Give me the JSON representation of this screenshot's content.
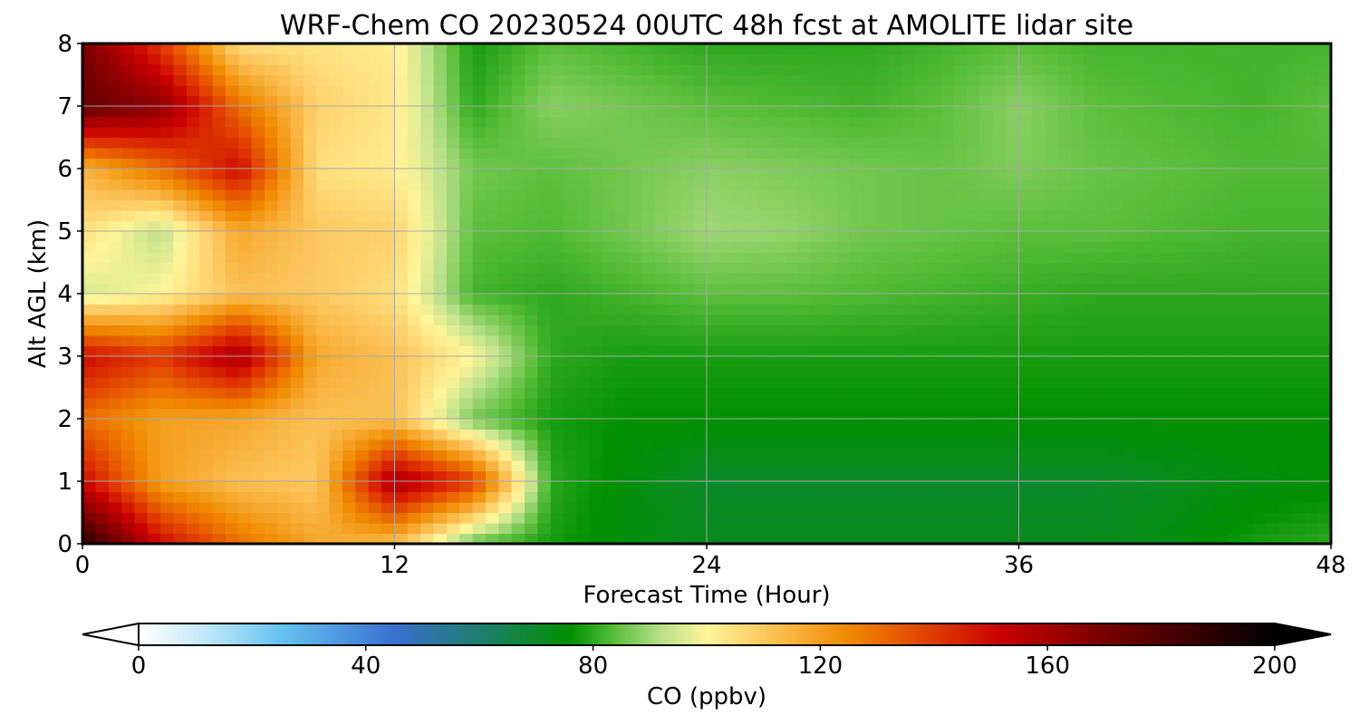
{
  "chart_data": {
    "type": "heatmap",
    "title": "WRF-Chem CO  20230524 00UTC 48h fcst at AMOLITE lidar site",
    "xlabel": "Forecast Time (Hour)",
    "ylabel": "Alt AGL (km)",
    "xlim": [
      0,
      48
    ],
    "ylim": [
      0,
      8
    ],
    "xticks": [
      0,
      12,
      24,
      36,
      48
    ],
    "yticks": [
      0,
      1,
      2,
      3,
      4,
      5,
      6,
      7,
      8
    ],
    "grid": true,
    "x": [
      0,
      3,
      6,
      9,
      12,
      15,
      18,
      21,
      24,
      27,
      30,
      33,
      36,
      39,
      42,
      45,
      48
    ],
    "y": [
      0,
      1,
      2,
      3,
      4,
      5,
      6,
      7,
      8
    ],
    "z": [
      [
        190,
        150,
        130,
        118,
        112,
        84,
        78,
        74,
        72,
        72,
        72,
        72,
        72,
        72,
        74,
        78,
        80
      ],
      [
        150,
        120,
        112,
        110,
        160,
        140,
        80,
        74,
        70,
        70,
        70,
        70,
        70,
        70,
        72,
        74,
        75
      ],
      [
        130,
        120,
        118,
        112,
        112,
        86,
        78,
        76,
        76,
        76,
        76,
        76,
        76,
        76,
        76,
        76,
        76
      ],
      [
        150,
        140,
        160,
        118,
        112,
        100,
        80,
        78,
        78,
        78,
        78,
        78,
        78,
        78,
        78,
        78,
        78
      ],
      [
        95,
        100,
        112,
        110,
        105,
        82,
        80,
        82,
        84,
        84,
        83,
        82,
        81,
        80,
        80,
        80,
        80
      ],
      [
        105,
        92,
        118,
        110,
        108,
        84,
        83,
        86,
        90,
        89,
        86,
        85,
        84,
        84,
        83,
        82,
        82
      ],
      [
        115,
        130,
        150,
        105,
        102,
        86,
        84,
        86,
        88,
        87,
        86,
        85,
        87,
        85,
        84,
        83,
        83
      ],
      [
        175,
        165,
        130,
        108,
        103,
        80,
        88,
        86,
        84,
        83,
        82,
        84,
        88,
        84,
        83,
        82,
        84
      ],
      [
        170,
        140,
        105,
        104,
        102,
        78,
        84,
        82,
        80,
        80,
        80,
        82,
        84,
        82,
        82,
        82,
        82
      ]
    ],
    "colorbar": {
      "label": "CO  (ppbv)",
      "min": 0,
      "max": 200,
      "ticks": [
        0,
        40,
        80,
        120,
        160,
        200
      ],
      "extend": "both",
      "stops": [
        {
          "v": 0,
          "c": "#ffffff"
        },
        {
          "v": 12,
          "c": "#bfe6f8"
        },
        {
          "v": 25,
          "c": "#66c3f0"
        },
        {
          "v": 45,
          "c": "#3a6fd0"
        },
        {
          "v": 62,
          "c": "#1a8060"
        },
        {
          "v": 76,
          "c": "#009000"
        },
        {
          "v": 84,
          "c": "#5cbf3c"
        },
        {
          "v": 92,
          "c": "#b8e08a"
        },
        {
          "v": 100,
          "c": "#fff59a"
        },
        {
          "v": 110,
          "c": "#fcc860"
        },
        {
          "v": 125,
          "c": "#f08a00"
        },
        {
          "v": 140,
          "c": "#e03a00"
        },
        {
          "v": 152,
          "c": "#c80000"
        },
        {
          "v": 170,
          "c": "#780000"
        },
        {
          "v": 200,
          "c": "#000000"
        }
      ]
    }
  }
}
